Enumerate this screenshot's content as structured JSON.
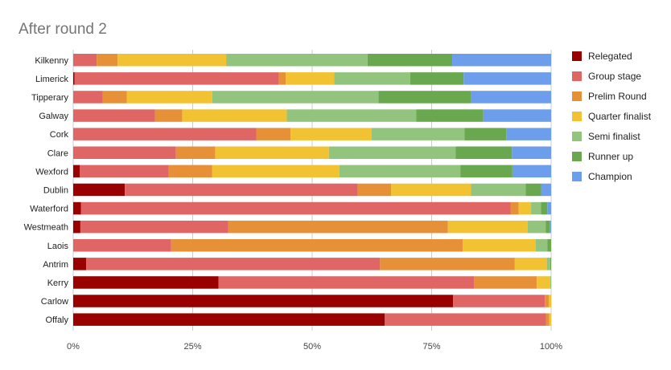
{
  "chart_data": {
    "type": "bar",
    "orientation": "horizontal",
    "stacked": "percent",
    "title": "After round 2",
    "xlabel": "",
    "ylabel": "",
    "xlim": [
      0,
      100
    ],
    "x_ticks": [
      "0%",
      "25%",
      "50%",
      "75%",
      "100%"
    ],
    "grid": true,
    "legend_position": "right",
    "categories": [
      "Kilkenny",
      "Limerick",
      "Tipperary",
      "Galway",
      "Cork",
      "Clare",
      "Wexford",
      "Dublin",
      "Waterford",
      "Westmeath",
      "Laois",
      "Antrim",
      "Kerry",
      "Carlow",
      "Offaly"
    ],
    "series": [
      {
        "name": "Relegated",
        "color": "#990000",
        "values": [
          0,
          0.3,
          0,
          0,
          0,
          0,
          1.4,
          10.8,
          1.6,
          1.5,
          0,
          2.7,
          30.4,
          79.5,
          65.2
        ]
      },
      {
        "name": "Group stage",
        "color": "#e06666",
        "values": [
          4.9,
          42.7,
          6.2,
          17.1,
          38.3,
          21.5,
          18.6,
          48.7,
          89.9,
          30.9,
          20.5,
          61.5,
          53.5,
          19.2,
          33.7
        ]
      },
      {
        "name": "Prelim Round",
        "color": "#e69138",
        "values": [
          4.4,
          1.5,
          5.0,
          5.7,
          7.2,
          8.2,
          9.1,
          7.0,
          1.7,
          46.0,
          61.0,
          28.2,
          13.1,
          0.8,
          0.7
        ]
      },
      {
        "name": "Quarter finalist",
        "color": "#f1c232",
        "values": [
          22.7,
          10.1,
          17.9,
          21.9,
          16.9,
          23.8,
          26.6,
          16.7,
          2.6,
          16.7,
          15.3,
          6.7,
          2.8,
          0.5,
          0.4
        ]
      },
      {
        "name": "Semi finalist",
        "color": "#93c47d",
        "values": [
          29.6,
          15.9,
          34.8,
          27.1,
          19.5,
          26.5,
          25.3,
          11.5,
          2.1,
          3.8,
          2.4,
          0.7,
          0.2,
          0,
          0
        ]
      },
      {
        "name": "Runner up",
        "color": "#6aa84f",
        "values": [
          17.7,
          11.2,
          19.4,
          14.0,
          8.7,
          11.8,
          10.9,
          3.2,
          1.3,
          0.8,
          0.8,
          0.2,
          0,
          0,
          0
        ]
      },
      {
        "name": "Champion",
        "color": "#6d9eeb",
        "values": [
          20.7,
          18.3,
          16.7,
          14.2,
          9.4,
          8.2,
          8.1,
          2.1,
          0.8,
          0.3,
          0,
          0,
          0,
          0,
          0
        ]
      }
    ]
  }
}
